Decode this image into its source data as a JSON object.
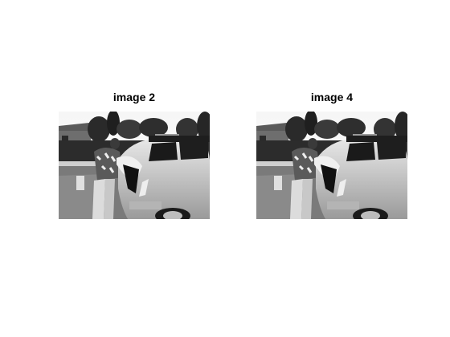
{
  "panels": [
    {
      "title": "image 2"
    },
    {
      "title": "image 4"
    }
  ],
  "colors": {
    "background": "#ffffff",
    "title": "#000000"
  }
}
